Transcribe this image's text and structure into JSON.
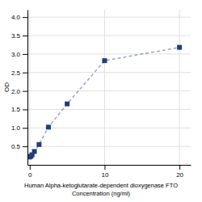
{
  "chart_data": {
    "type": "line",
    "xlabel": [
      "Human Alpha-ketoglutarate-dependent dioxygenase FTO",
      "Concentration (ng/ml)"
    ],
    "ylabel": "OD",
    "x": [
      0.0,
      0.156,
      0.313,
      0.625,
      1.25,
      2.5,
      5.0,
      10.0,
      20.0
    ],
    "values": [
      0.212,
      0.235,
      0.272,
      0.362,
      0.55,
      1.02,
      1.65,
      2.82,
      3.18
    ],
    "color": "#1f3f7a",
    "marker": "square",
    "line_style": "dashed",
    "xlim": [
      -0.3,
      21.5
    ],
    "ylim": [
      0,
      4.2
    ],
    "xticks": [
      0,
      10,
      20
    ],
    "yticks": [
      0.5,
      {
        "value": 1.0,
        "label": "1.0"
      },
      1.5,
      {
        "value": 2.0,
        "label": "2.0"
      },
      2.5,
      {
        "value": 3.0,
        "label": "3.0"
      },
      3.5,
      {
        "value": 4.0,
        "label": "4.0"
      }
    ],
    "grid": true
  }
}
